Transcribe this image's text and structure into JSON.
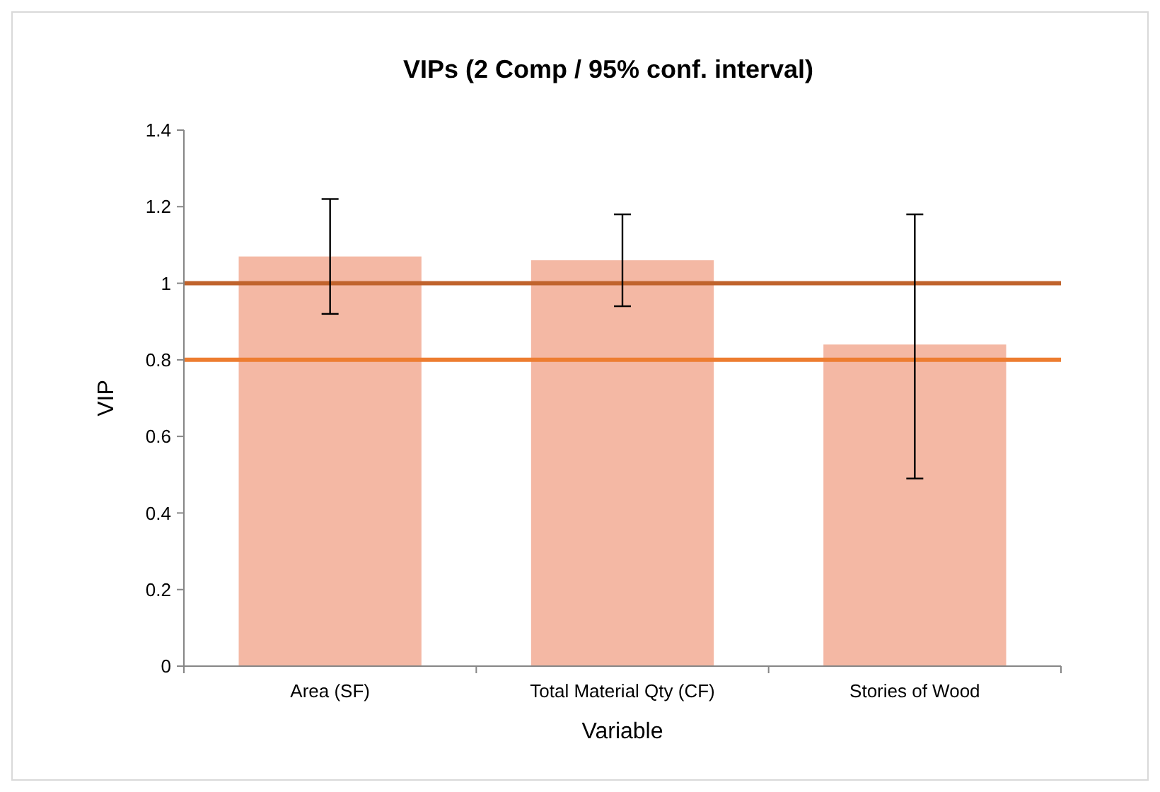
{
  "chart_data": {
    "type": "bar",
    "title": "VIPs (2 Comp / 95% conf. interval)",
    "xlabel": "Variable",
    "ylabel": "VIP",
    "categories": [
      "Area (SF)",
      "Total Material Qty (CF)",
      "Stories of Wood"
    ],
    "values": [
      1.07,
      1.06,
      0.84
    ],
    "color": "#f4b8a4",
    "errors": [
      [
        0.92,
        1.22
      ],
      [
        0.94,
        1.18
      ],
      [
        0.49,
        1.18
      ]
    ],
    "ylim": [
      0,
      1.4
    ],
    "yticks": [
      0,
      0.2,
      0.4,
      0.6,
      0.8,
      1,
      1.2,
      1.4
    ],
    "grid": false,
    "ref_lines": [
      {
        "axis": "y",
        "value": 1,
        "color": "#c0632c"
      },
      {
        "axis": "y",
        "value": 0.8,
        "color": "#ed7d31"
      }
    ]
  }
}
